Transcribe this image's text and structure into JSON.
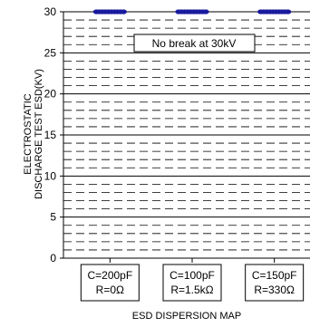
{
  "chart_data": {
    "type": "scatter",
    "ylabel_lines": [
      "ELECTROSTATIC",
      "DISCHARGE TEST ESD(KV)"
    ],
    "xlabel": "ESD DISPERSION MAP",
    "ylim": [
      0,
      30
    ],
    "yticks": [
      0,
      5,
      10,
      15,
      20,
      25,
      30
    ],
    "grid": "major solid every 5, minor dashed every 1",
    "categories": [
      {
        "line1": "C=200pF",
        "line2": "R=0Ω"
      },
      {
        "line1": "C=100pF",
        "line2": "R=1.5kΩ"
      },
      {
        "line1": "C=150pF",
        "line2": "R=330Ω"
      }
    ],
    "marker_color": "#1a1a9e",
    "series": [
      {
        "values": [
          [
            30,
            30,
            30,
            30,
            30,
            30,
            30,
            30,
            30,
            30
          ],
          [
            30,
            30,
            30,
            30,
            30,
            30,
            30,
            30,
            30,
            30
          ],
          [
            30,
            30,
            30,
            30,
            30,
            30,
            30,
            30,
            30,
            30
          ]
        ]
      }
    ],
    "annotation": "No break at 30kV"
  }
}
